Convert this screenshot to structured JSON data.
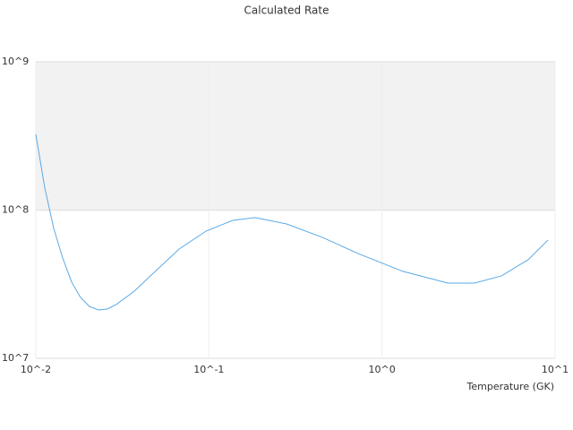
{
  "chart_data": {
    "type": "line",
    "title": "Calculated Rate",
    "x_label": "Temperature (GK)",
    "x": [
      0.01,
      0.01127,
      0.0127,
      0.0143,
      0.0161,
      0.0181,
      0.0204,
      0.023,
      0.0259,
      0.0292,
      0.0371,
      0.0471,
      0.0673,
      0.0962,
      0.1374,
      0.185,
      0.281,
      0.452,
      0.728,
      1.32,
      2.4,
      3.43,
      4.9,
      7.0,
      9.1
    ],
    "series": [
      {
        "color": "#5aa9e6",
        "values": [
          324000000,
          141000000,
          75000000,
          47500000,
          32700000,
          25800000,
          22400000,
          21200000,
          21500000,
          23100000,
          28400000,
          37000000,
          54600000,
          72100000,
          85200000,
          89000000,
          80600000,
          65500000,
          50900000,
          38600000,
          32200000,
          32200000,
          36000000,
          46300000,
          62800000
        ]
      }
    ],
    "xlim": [
      0.01,
      10
    ],
    "ylim": [
      10000000,
      1000000000
    ],
    "xticks": [
      {
        "value": 0.01,
        "label": "10^-2"
      },
      {
        "value": 0.1,
        "label": "10^-1"
      },
      {
        "value": 1,
        "label": "10^0"
      },
      {
        "value": 10,
        "label": "10^1"
      }
    ],
    "yticks": [
      {
        "value": 10000000,
        "label": "10^7"
      },
      {
        "value": 100000000,
        "label": "10^8"
      },
      {
        "value": 1000000000,
        "label": "10^9"
      }
    ],
    "xscale": "log",
    "yscale": "log",
    "grid": true,
    "alternate_bands": true,
    "band_color": "#f2f2f2"
  }
}
